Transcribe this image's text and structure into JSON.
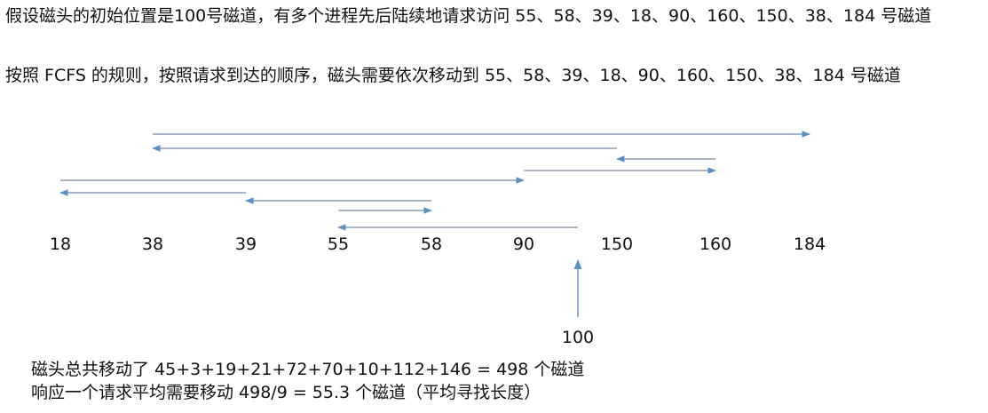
{
  "intro": {
    "line1": "假设磁头的初始位置是100号磁道，有多个进程先后陆续地请求访问 55、58、39、18、90、160、150、38、184 号磁道",
    "line2": "按照 FCFS 的规则，按照请求到达的顺序，磁头需要依次移动到 55、58、39、18、90、160、150、38、184 号磁道"
  },
  "diagram": {
    "ticks": [
      "18",
      "38",
      "39",
      "55",
      "58",
      "90",
      "150",
      "160",
      "184"
    ],
    "start_label": "100",
    "moves": [
      {
        "from": "100",
        "to": "55"
      },
      {
        "from": "55",
        "to": "58"
      },
      {
        "from": "58",
        "to": "39"
      },
      {
        "from": "39",
        "to": "18"
      },
      {
        "from": "18",
        "to": "90"
      },
      {
        "from": "90",
        "to": "160"
      },
      {
        "from": "160",
        "to": "150"
      },
      {
        "from": "150",
        "to": "38"
      },
      {
        "from": "38",
        "to": "184"
      }
    ],
    "colors": {
      "line": "#7a8aa0",
      "arrow": "#5b8fc7"
    }
  },
  "summary": {
    "line1": "磁头总共移动了  45+3+19+21+72+70+10+112+146 = 498  个磁道",
    "line2": "响应一个请求平均需要移动 498/9 = 55.3 个磁道（平均寻找长度）"
  }
}
